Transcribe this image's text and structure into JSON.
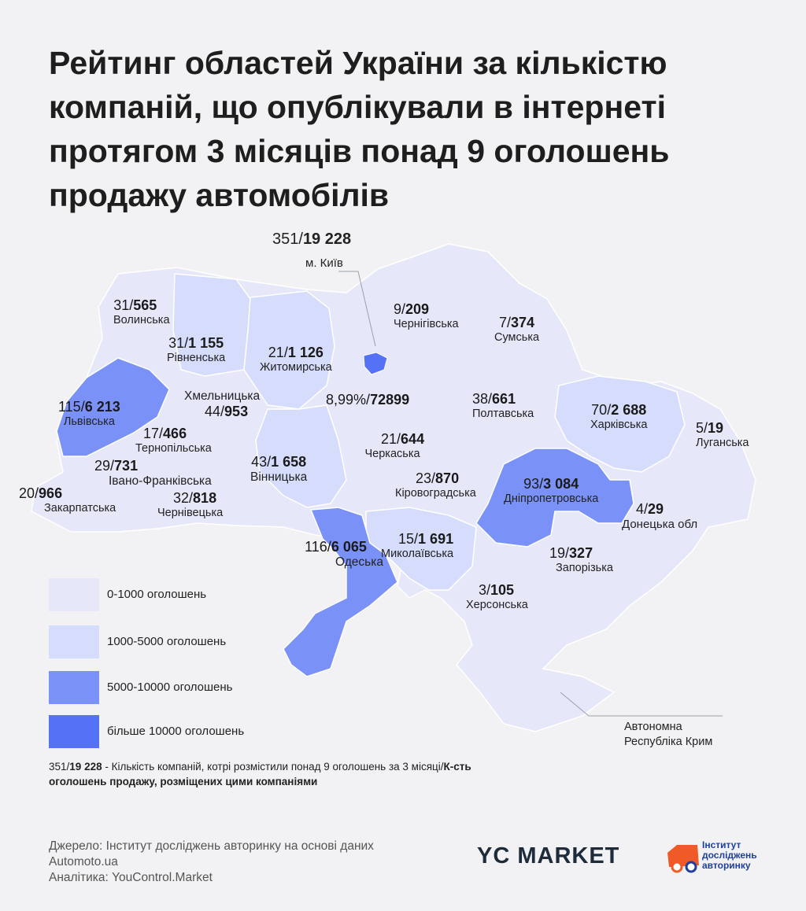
{
  "title": "Рейтинг областей України за кількістю компаній, що опублікували в інтернеті протягом 3 місяців понад 9 оголошень продажу автомобілів",
  "colors": {
    "range_0_1000": "#e6e8fa",
    "range_1000_5000": "#d6dcfb",
    "range_5000_10000": "#7a92f8",
    "range_10000_plus": "#5572f7",
    "background": "#f2f2f4"
  },
  "kyiv_city": {
    "companies": "351",
    "ads": "19 228",
    "name": "м. Київ"
  },
  "ukraine_total": {
    "share": "8,99%",
    "ads": "72899"
  },
  "regions": [
    {
      "id": "volynska",
      "companies": "31",
      "ads": "565",
      "name": "Волинська"
    },
    {
      "id": "rivnenska",
      "companies": "31",
      "ads": "1 155",
      "name": "Рівненська"
    },
    {
      "id": "zhytomyrska",
      "companies": "21",
      "ads": "1 126",
      "name": "Житомирська"
    },
    {
      "id": "chernihivska",
      "companies": "9",
      "ads": "209",
      "name": "Чернігівська"
    },
    {
      "id": "sumska",
      "companies": "7",
      "ads": "374",
      "name": "Сумська"
    },
    {
      "id": "lvivska",
      "companies": "115",
      "ads": "6 213",
      "name": "Львівська"
    },
    {
      "id": "khmelnytska",
      "companies": "44",
      "ads": "953",
      "name": "Хмельницька"
    },
    {
      "id": "poltavska",
      "companies": "38",
      "ads": "661",
      "name": "Полтавська"
    },
    {
      "id": "kharkivska",
      "companies": "70",
      "ads": "2 688",
      "name": "Харківська"
    },
    {
      "id": "luhanska",
      "companies": "5",
      "ads": "19",
      "name": "Луганська"
    },
    {
      "id": "ternopilska",
      "companies": "17",
      "ads": "466",
      "name": "Тернопільська"
    },
    {
      "id": "cherkaska",
      "companies": "21",
      "ads": "644",
      "name": "Черкаська"
    },
    {
      "id": "ivano_frankivska",
      "companies": "29",
      "ads": "731",
      "name": "Івано-Франківська"
    },
    {
      "id": "vinnytska",
      "companies": "43",
      "ads": "1 658",
      "name": "Вінницька"
    },
    {
      "id": "kirovohradska",
      "companies": "23",
      "ads": "870",
      "name": "Кіровоградська"
    },
    {
      "id": "dnipropetrovska",
      "companies": "93",
      "ads": "3 084",
      "name": "Дніпропетровська"
    },
    {
      "id": "zakarpatska",
      "companies": "20",
      "ads": "966",
      "name": "Закарпатська"
    },
    {
      "id": "chernivetska",
      "companies": "32",
      "ads": "818",
      "name": "Чернівецька"
    },
    {
      "id": "donetska",
      "companies": "4",
      "ads": "29",
      "name": "Донецька обл"
    },
    {
      "id": "odeska",
      "companies": "116",
      "ads": "6 065",
      "name": "Одеська"
    },
    {
      "id": "mykolaivska",
      "companies": "15",
      "ads": "1 691",
      "name": "Миколаївська"
    },
    {
      "id": "zaporizka",
      "companies": "19",
      "ads": "327",
      "name": "Запорізька"
    },
    {
      "id": "khersonska",
      "companies": "3",
      "ads": "105",
      "name": "Херсонська"
    }
  ],
  "crimea_name": "Автономна Республіка Крим",
  "legend": [
    {
      "label": "0-1000 оголошень"
    },
    {
      "label": "1000-5000 оголошень"
    },
    {
      "label": "5000-10000 оголошень"
    },
    {
      "label": "більше 10000  оголошень"
    }
  ],
  "note": {
    "example_companies": "351",
    "example_ads": "19 228",
    "part1": " - Кількість компаній, котрі розмістили понад 9 оголошень за 3 місяці/",
    "part2": "К-сть оголошень продажу, розміщених цими компаніями"
  },
  "source": {
    "line1": "Джерело: Інститут досліджень авторинку на основі даних Automoto.ua",
    "line2": "Аналітика: YouControl.Market"
  },
  "logos": {
    "yc_market": "YC MARKET",
    "institute": "Інститут досліджень авторинку"
  }
}
